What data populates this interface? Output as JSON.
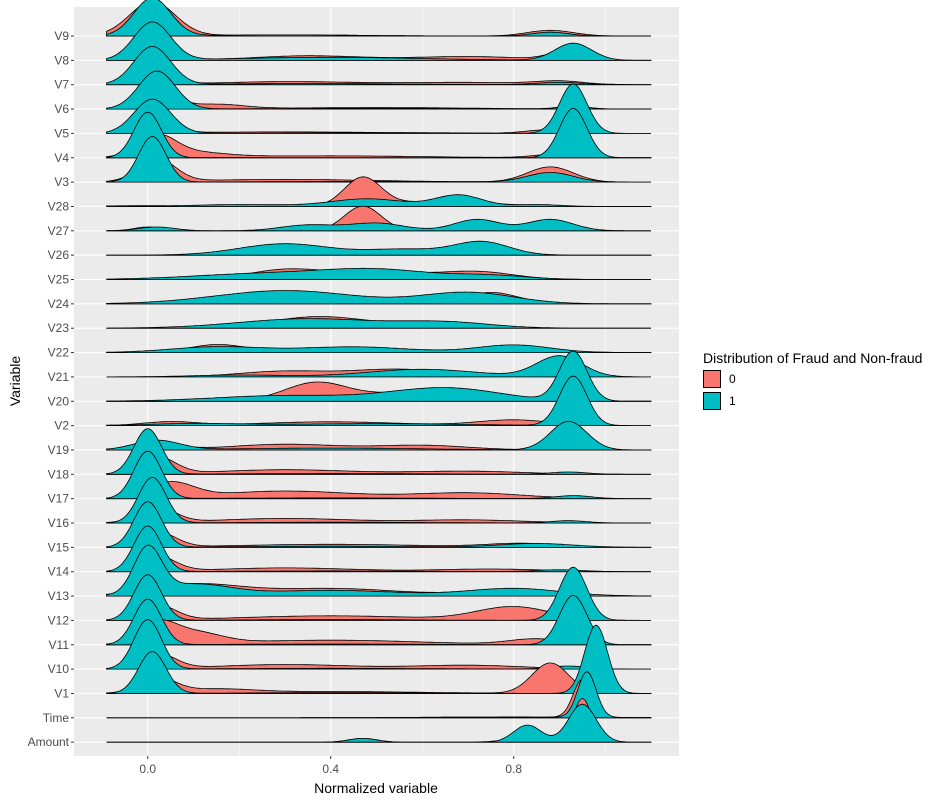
{
  "chart_data": {
    "type": "ridgeline",
    "xlabel": "Normalized variable",
    "ylabel": "Variable",
    "x_ticks": [
      0.0,
      0.4,
      0.8
    ],
    "x_tick_labels": [
      "0.0",
      "0.4",
      "0.8"
    ],
    "xlim": [
      -0.1,
      1.1
    ],
    "grid": true,
    "legend": {
      "title": "Distribution of Fraud and Non-fraud",
      "placement": "right",
      "entries": [
        {
          "label": "0",
          "color": "#F8766D"
        },
        {
          "label": "1",
          "color": "#00BFC4"
        }
      ]
    },
    "variables": [
      {
        "name": "V9",
        "fraud0": [
          [
            0.01,
            0.9,
            0.05
          ],
          [
            0.3,
            0.03,
            0.15
          ],
          [
            0.88,
            0.15,
            0.05
          ]
        ],
        "fraud1": [
          [
            0.01,
            1.0,
            0.04
          ],
          [
            0.3,
            0.03,
            0.15
          ],
          [
            0.88,
            0.1,
            0.04
          ]
        ]
      },
      {
        "name": "V8",
        "fraud0": [
          [
            0.0,
            0.5,
            0.03
          ],
          [
            0.35,
            0.12,
            0.12
          ],
          [
            0.7,
            0.1,
            0.12
          ],
          [
            0.92,
            0.25,
            0.04
          ]
        ],
        "fraud1": [
          [
            0.01,
            1.0,
            0.04
          ],
          [
            0.4,
            0.08,
            0.2
          ],
          [
            0.93,
            0.45,
            0.04
          ]
        ]
      },
      {
        "name": "V7",
        "fraud0": [
          [
            0.01,
            0.4,
            0.04
          ],
          [
            0.3,
            0.08,
            0.15
          ],
          [
            0.7,
            0.06,
            0.15
          ],
          [
            0.9,
            0.08,
            0.05
          ]
        ],
        "fraud1": [
          [
            0.01,
            1.0,
            0.04
          ],
          [
            0.35,
            0.03,
            0.2
          ],
          [
            0.9,
            0.06,
            0.05
          ]
        ]
      },
      {
        "name": "V6",
        "fraud0": [
          [
            0.02,
            0.5,
            0.04
          ],
          [
            0.15,
            0.12,
            0.06
          ],
          [
            0.5,
            0.04,
            0.2
          ],
          [
            0.93,
            0.08,
            0.03
          ]
        ],
        "fraud1": [
          [
            0.02,
            1.0,
            0.04
          ],
          [
            0.5,
            0.02,
            0.2
          ],
          [
            0.93,
            0.06,
            0.03
          ]
        ]
      },
      {
        "name": "V5",
        "fraud0": [
          [
            0.01,
            0.5,
            0.04
          ],
          [
            0.3,
            0.04,
            0.2
          ],
          [
            0.88,
            0.1,
            0.05
          ]
        ],
        "fraud1": [
          [
            0.01,
            0.9,
            0.04
          ],
          [
            0.5,
            0.02,
            0.2
          ],
          [
            0.93,
            1.3,
            0.03
          ]
        ]
      },
      {
        "name": "V4",
        "fraud0": [
          [
            0.02,
            0.5,
            0.04
          ],
          [
            0.08,
            0.15,
            0.08
          ],
          [
            0.4,
            0.05,
            0.2
          ],
          [
            0.9,
            0.1,
            0.05
          ]
        ],
        "fraud1": [
          [
            0.0,
            1.2,
            0.03
          ],
          [
            0.93,
            1.3,
            0.03
          ]
        ]
      },
      {
        "name": "V3",
        "fraud0": [
          [
            0.02,
            0.6,
            0.04
          ],
          [
            0.3,
            0.07,
            0.2
          ],
          [
            0.88,
            0.4,
            0.05
          ]
        ],
        "fraud1": [
          [
            0.01,
            1.2,
            0.03
          ],
          [
            0.5,
            0.02,
            0.2
          ],
          [
            0.88,
            0.25,
            0.05
          ]
        ]
      },
      {
        "name": "V28",
        "fraud0": [
          [
            0.0,
            0.02,
            0.1
          ],
          [
            0.47,
            0.75,
            0.04
          ],
          [
            0.65,
            0.15,
            0.1
          ]
        ],
        "fraud1": [
          [
            0.2,
            0.05,
            0.1
          ],
          [
            0.48,
            0.2,
            0.08
          ],
          [
            0.68,
            0.3,
            0.05
          ],
          [
            0.85,
            0.05,
            0.05
          ]
        ]
      },
      {
        "name": "V27",
        "fraud0": [
          [
            0.0,
            0.1,
            0.03
          ],
          [
            0.47,
            0.65,
            0.04
          ],
          [
            0.73,
            0.2,
            0.05
          ],
          [
            0.88,
            0.2,
            0.05
          ]
        ],
        "fraud1": [
          [
            0.02,
            0.1,
            0.04
          ],
          [
            0.35,
            0.15,
            0.06
          ],
          [
            0.5,
            0.2,
            0.06
          ],
          [
            0.72,
            0.3,
            0.05
          ],
          [
            0.88,
            0.3,
            0.05
          ]
        ]
      },
      {
        "name": "V26",
        "fraud0": [
          [
            0.32,
            0.25,
            0.08
          ],
          [
            0.55,
            0.1,
            0.06
          ],
          [
            0.73,
            0.25,
            0.06
          ]
        ],
        "fraud1": [
          [
            0.3,
            0.3,
            0.1
          ],
          [
            0.56,
            0.15,
            0.08
          ],
          [
            0.73,
            0.35,
            0.06
          ]
        ]
      },
      {
        "name": "V25",
        "fraud0": [
          [
            0.3,
            0.25,
            0.08
          ],
          [
            0.5,
            0.2,
            0.1
          ],
          [
            0.72,
            0.2,
            0.08
          ]
        ],
        "fraud1": [
          [
            0.25,
            0.15,
            0.15
          ],
          [
            0.5,
            0.25,
            0.12
          ],
          [
            0.75,
            0.1,
            0.08
          ]
        ]
      },
      {
        "name": "V24",
        "fraud0": [
          [
            0.3,
            0.15,
            0.12
          ],
          [
            0.75,
            0.3,
            0.06
          ]
        ],
        "fraud1": [
          [
            0.3,
            0.35,
            0.15
          ],
          [
            0.7,
            0.3,
            0.1
          ]
        ]
      },
      {
        "name": "V23",
        "fraud0": [
          [
            0.37,
            0.3,
            0.1
          ],
          [
            0.6,
            0.1,
            0.1
          ]
        ],
        "fraud1": [
          [
            0.35,
            0.25,
            0.15
          ],
          [
            0.65,
            0.15,
            0.1
          ]
        ]
      },
      {
        "name": "V22",
        "fraud0": [
          [
            0.15,
            0.2,
            0.06
          ],
          [
            0.4,
            0.1,
            0.12
          ],
          [
            0.8,
            0.15,
            0.08
          ]
        ],
        "fraud1": [
          [
            0.15,
            0.15,
            0.1
          ],
          [
            0.45,
            0.15,
            0.12
          ],
          [
            0.8,
            0.2,
            0.08
          ]
        ]
      },
      {
        "name": "V21",
        "fraud0": [
          [
            0.3,
            0.15,
            0.1
          ],
          [
            0.55,
            0.2,
            0.1
          ],
          [
            0.9,
            0.2,
            0.05
          ]
        ],
        "fraud1": [
          [
            0.2,
            0.05,
            0.1
          ],
          [
            0.6,
            0.2,
            0.12
          ],
          [
            0.9,
            0.55,
            0.05
          ]
        ]
      },
      {
        "name": "V20",
        "fraud0": [
          [
            0.37,
            0.5,
            0.07
          ],
          [
            0.55,
            0.2,
            0.07
          ]
        ],
        "fraud1": [
          [
            0.3,
            0.15,
            0.15
          ],
          [
            0.65,
            0.35,
            0.12
          ],
          [
            0.93,
            1.3,
            0.03
          ]
        ]
      },
      {
        "name": "V2",
        "fraud0": [
          [
            0.05,
            0.1,
            0.06
          ],
          [
            0.4,
            0.1,
            0.15
          ],
          [
            0.8,
            0.15,
            0.08
          ]
        ],
        "fraud1": [
          [
            0.1,
            0.05,
            0.1
          ],
          [
            0.5,
            0.05,
            0.2
          ],
          [
            0.93,
            1.3,
            0.03
          ]
        ]
      },
      {
        "name": "V19",
        "fraud0": [
          [
            0.02,
            0.15,
            0.05
          ],
          [
            0.3,
            0.15,
            0.12
          ],
          [
            0.6,
            0.12,
            0.1
          ]
        ],
        "fraud1": [
          [
            0.02,
            0.25,
            0.05
          ],
          [
            0.4,
            0.05,
            0.2
          ],
          [
            0.92,
            0.75,
            0.04
          ]
        ]
      },
      {
        "name": "V18",
        "fraud0": [
          [
            0.02,
            0.45,
            0.04
          ],
          [
            0.3,
            0.12,
            0.15
          ],
          [
            0.7,
            0.08,
            0.12
          ]
        ],
        "fraud1": [
          [
            0.0,
            1.2,
            0.03
          ],
          [
            0.4,
            0.02,
            0.2
          ],
          [
            0.92,
            0.06,
            0.04
          ]
        ]
      },
      {
        "name": "V17",
        "fraud0": [
          [
            0.05,
            0.4,
            0.05
          ],
          [
            0.3,
            0.2,
            0.15
          ],
          [
            0.7,
            0.15,
            0.12
          ]
        ],
        "fraud1": [
          [
            0.0,
            1.25,
            0.03
          ],
          [
            0.4,
            0.02,
            0.2
          ],
          [
            0.93,
            0.08,
            0.04
          ]
        ]
      },
      {
        "name": "V16",
        "fraud0": [
          [
            0.02,
            0.4,
            0.04
          ],
          [
            0.3,
            0.12,
            0.15
          ],
          [
            0.7,
            0.08,
            0.12
          ]
        ],
        "fraud1": [
          [
            0.01,
            1.2,
            0.03
          ],
          [
            0.4,
            0.02,
            0.2
          ],
          [
            0.92,
            0.06,
            0.04
          ]
        ]
      },
      {
        "name": "V15",
        "fraud0": [
          [
            0.02,
            0.4,
            0.04
          ],
          [
            0.4,
            0.08,
            0.2
          ],
          [
            0.82,
            0.1,
            0.08
          ]
        ],
        "fraud1": [
          [
            0.0,
            1.2,
            0.03
          ],
          [
            0.4,
            0.03,
            0.2
          ],
          [
            0.85,
            0.1,
            0.08
          ]
        ]
      },
      {
        "name": "V14",
        "fraud0": [
          [
            0.02,
            0.4,
            0.04
          ],
          [
            0.3,
            0.1,
            0.15
          ],
          [
            0.75,
            0.07,
            0.12
          ]
        ],
        "fraud1": [
          [
            0.0,
            1.2,
            0.03
          ],
          [
            0.4,
            0.02,
            0.2
          ],
          [
            0.9,
            0.05,
            0.05
          ]
        ]
      },
      {
        "name": "V13",
        "fraud0": [
          [
            0.1,
            0.3,
            0.1
          ],
          [
            0.4,
            0.2,
            0.15
          ],
          [
            0.8,
            0.15,
            0.1
          ]
        ],
        "fraud1": [
          [
            0.0,
            1.2,
            0.03
          ],
          [
            0.1,
            0.3,
            0.08
          ],
          [
            0.4,
            0.15,
            0.15
          ],
          [
            0.8,
            0.2,
            0.1
          ]
        ]
      },
      {
        "name": "V12",
        "fraud0": [
          [
            0.02,
            0.4,
            0.04
          ],
          [
            0.4,
            0.12,
            0.2
          ],
          [
            0.8,
            0.35,
            0.08
          ]
        ],
        "fraud1": [
          [
            0.0,
            1.2,
            0.03
          ],
          [
            0.4,
            0.02,
            0.2
          ],
          [
            0.93,
            1.4,
            0.03
          ]
        ]
      },
      {
        "name": "V11",
        "fraud0": [
          [
            0.02,
            0.5,
            0.04
          ],
          [
            0.1,
            0.3,
            0.06
          ],
          [
            0.4,
            0.12,
            0.2
          ],
          [
            0.85,
            0.15,
            0.06
          ]
        ],
        "fraud1": [
          [
            0.0,
            1.2,
            0.03
          ],
          [
            0.4,
            0.02,
            0.2
          ],
          [
            0.93,
            1.3,
            0.03
          ]
        ]
      },
      {
        "name": "V10",
        "fraud0": [
          [
            0.02,
            0.4,
            0.04
          ],
          [
            0.3,
            0.12,
            0.15
          ],
          [
            0.7,
            0.1,
            0.12
          ]
        ],
        "fraud1": [
          [
            0.0,
            1.3,
            0.03
          ],
          [
            0.4,
            0.02,
            0.2
          ],
          [
            0.92,
            0.08,
            0.04
          ]
        ]
      },
      {
        "name": "V1",
        "fraud0": [
          [
            0.02,
            0.4,
            0.04
          ],
          [
            0.15,
            0.1,
            0.08
          ],
          [
            0.4,
            0.05,
            0.2
          ],
          [
            0.88,
            0.8,
            0.04
          ]
        ],
        "fraud1": [
          [
            0.01,
            1.1,
            0.03
          ],
          [
            0.4,
            0.02,
            0.2
          ],
          [
            0.98,
            1.8,
            0.025
          ]
        ]
      },
      {
        "name": "Time",
        "fraud0": [
          [
            0.95,
            1.0,
            0.02
          ],
          [
            0.8,
            0.02,
            0.2
          ]
        ],
        "fraud1": [
          [
            0.96,
            1.2,
            0.02
          ],
          [
            0.8,
            0.02,
            0.2
          ]
        ]
      },
      {
        "name": "Amount",
        "fraud0": [
          [
            0.47,
            0.1,
            0.03
          ],
          [
            0.82,
            0.1,
            0.04
          ],
          [
            0.95,
            1.15,
            0.02
          ]
        ],
        "fraud1": [
          [
            0.47,
            0.1,
            0.03
          ],
          [
            0.83,
            0.45,
            0.03
          ],
          [
            0.95,
            1.0,
            0.03
          ]
        ]
      }
    ]
  }
}
